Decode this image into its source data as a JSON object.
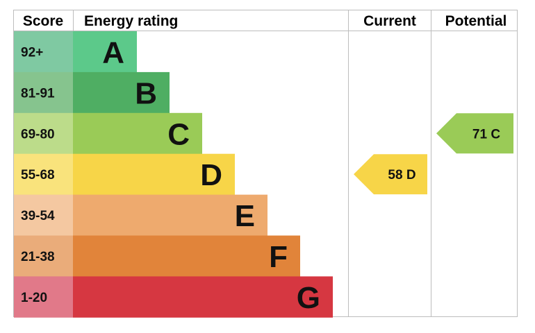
{
  "headers": {
    "score": "Score",
    "rating": "Energy rating",
    "current": "Current",
    "potential": "Potential"
  },
  "chart_data": {
    "type": "bar",
    "bands": [
      {
        "letter": "A",
        "range": "92+",
        "color": "#5cc98a",
        "score_bg": "#7fc9a2"
      },
      {
        "letter": "B",
        "range": "81-91",
        "color": "#4fae63",
        "score_bg": "#86c48e"
      },
      {
        "letter": "C",
        "range": "69-80",
        "color": "#9acb57",
        "score_bg": "#bcdc8a"
      },
      {
        "letter": "D",
        "range": "55-68",
        "color": "#f7d548",
        "score_bg": "#f9e37c"
      },
      {
        "letter": "E",
        "range": "39-54",
        "color": "#eeaa6e",
        "score_bg": "#f4c8a1"
      },
      {
        "letter": "F",
        "range": "21-38",
        "color": "#e1843a",
        "score_bg": "#eaac7a"
      },
      {
        "letter": "G",
        "range": "1-20",
        "color": "#d63741",
        "score_bg": "#e17989"
      }
    ],
    "current": {
      "value": 58,
      "letter": "D",
      "color": "#f7d548"
    },
    "potential": {
      "value": 71,
      "letter": "C",
      "color": "#9acb57"
    }
  }
}
